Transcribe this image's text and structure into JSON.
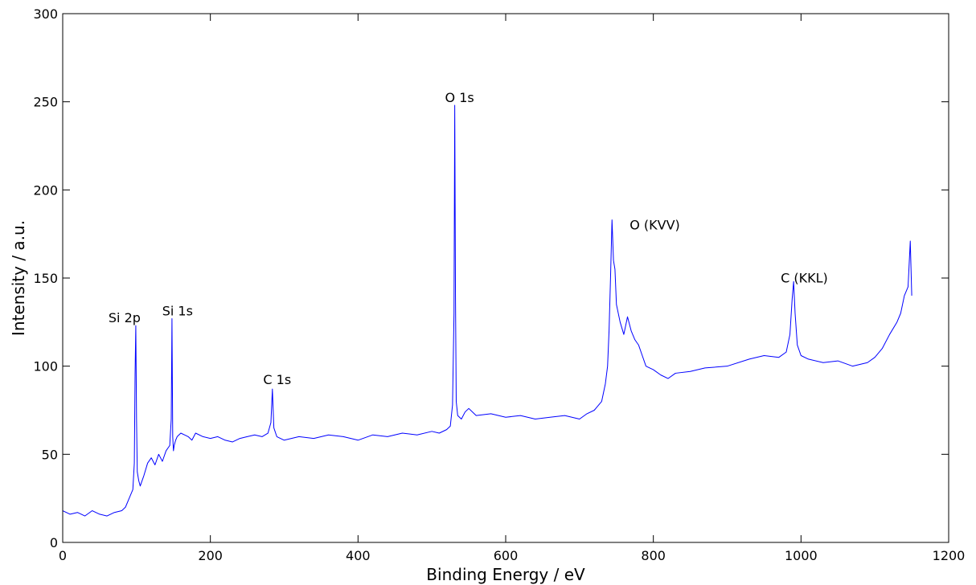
{
  "chart_data": {
    "type": "line",
    "title": "",
    "xlabel": "Binding Energy / eV",
    "ylabel": "Intensity / a.u.",
    "xlim": [
      0,
      1200
    ],
    "ylim": [
      0,
      300
    ],
    "xticks": [
      "0",
      "200",
      "400",
      "600",
      "800",
      "1000",
      "1200"
    ],
    "yticks": [
      "0",
      "50",
      "100",
      "150",
      "200",
      "250",
      "300"
    ],
    "grid": false,
    "legend": "none",
    "line_color": "#0000ff",
    "series": [
      {
        "x": [
          0,
          10,
          20,
          30,
          40,
          50,
          60,
          70,
          80,
          85,
          90,
          95,
          97,
          98,
          99,
          100,
          101,
          103,
          105,
          110,
          115,
          120,
          125,
          130,
          135,
          140,
          145,
          147,
          148,
          149,
          150,
          151,
          153,
          155,
          160,
          165,
          170,
          175,
          180,
          190,
          200,
          210,
          220,
          230,
          240,
          250,
          260,
          270,
          278,
          282,
          284,
          286,
          290,
          300,
          320,
          340,
          360,
          380,
          400,
          420,
          440,
          460,
          480,
          500,
          510,
          520,
          525,
          528,
          530,
          531,
          532,
          533,
          535,
          540,
          545,
          550,
          560,
          580,
          600,
          620,
          640,
          660,
          680,
          700,
          710,
          720,
          730,
          735,
          738,
          740,
          742,
          744,
          746,
          748,
          750,
          755,
          760,
          765,
          770,
          775,
          780,
          785,
          790,
          800,
          810,
          820,
          830,
          850,
          870,
          900,
          930,
          950,
          970,
          980,
          985,
          988,
          990,
          992,
          995,
          1000,
          1010,
          1030,
          1050,
          1070,
          1090,
          1100,
          1110,
          1120,
          1130,
          1135,
          1140,
          1145,
          1148,
          1150
        ],
        "y": [
          18,
          16,
          17,
          15,
          18,
          16,
          15,
          17,
          18,
          20,
          25,
          30,
          45,
          95,
          123,
          70,
          40,
          35,
          32,
          38,
          45,
          48,
          44,
          50,
          46,
          52,
          55,
          70,
          127,
          60,
          52,
          55,
          58,
          60,
          62,
          61,
          60,
          58,
          62,
          60,
          59,
          60,
          58,
          57,
          59,
          60,
          61,
          60,
          62,
          68,
          87,
          65,
          60,
          58,
          60,
          59,
          61,
          60,
          58,
          61,
          60,
          62,
          61,
          63,
          62,
          64,
          66,
          78,
          130,
          248,
          140,
          80,
          72,
          70,
          74,
          76,
          72,
          73,
          71,
          72,
          70,
          71,
          72,
          70,
          73,
          75,
          80,
          90,
          100,
          120,
          150,
          183,
          160,
          155,
          135,
          125,
          118,
          128,
          120,
          115,
          112,
          106,
          100,
          98,
          95,
          93,
          96,
          97,
          99,
          100,
          104,
          106,
          105,
          108,
          118,
          138,
          148,
          130,
          112,
          106,
          104,
          102,
          103,
          100,
          102,
          105,
          110,
          118,
          125,
          130,
          140,
          145,
          171,
          140
        ]
      }
    ],
    "annotations": [
      {
        "text": "Si 2p",
        "x": 99,
        "y": 123
      },
      {
        "text": "Si 1s",
        "x": 149,
        "y": 127
      },
      {
        "text": "C 1s",
        "x": 284,
        "y": 87
      },
      {
        "text": "O 1s",
        "x": 531,
        "y": 248
      },
      {
        "text": "O (KVV)",
        "x": 744,
        "y": 183
      },
      {
        "text": "C (KKL)",
        "x": 990,
        "y": 148
      }
    ]
  }
}
